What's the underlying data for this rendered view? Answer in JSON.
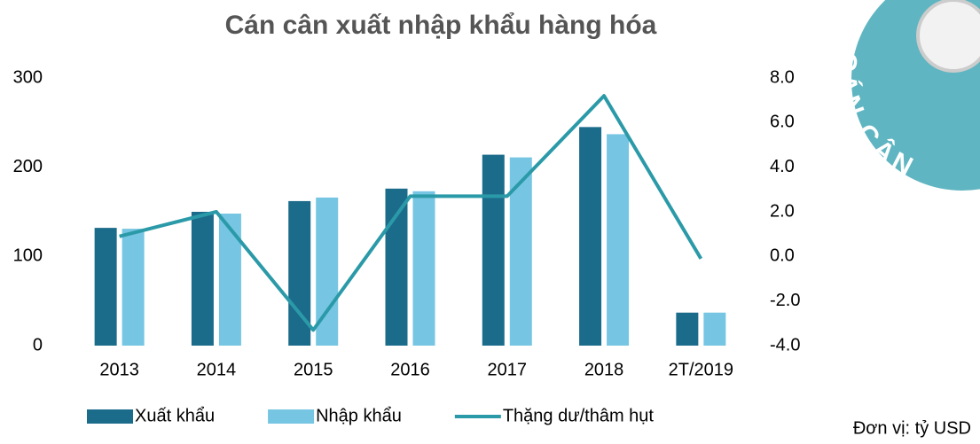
{
  "chart_data": {
    "type": "bar-line",
    "title": "Cán cân xuất nhập khẩu hàng hóa",
    "categories": [
      "2013",
      "2014",
      "2015",
      "2016",
      "2017",
      "2018",
      "2T/2019"
    ],
    "series": [
      {
        "name": "Xuất khẩu",
        "color": "#1b6b8b",
        "type": "bar",
        "values": [
          132,
          150,
          162,
          176,
          214,
          245,
          37
        ]
      },
      {
        "name": "Nhập khẩu",
        "color": "#76c5e3",
        "type": "bar",
        "values": [
          131,
          148,
          166,
          173,
          211,
          237,
          37
        ]
      },
      {
        "name": "Thặng dư/thâm hụt",
        "color": "#2b9aa8",
        "type": "line",
        "axis": "y2",
        "values": [
          0.9,
          2.0,
          -3.3,
          2.7,
          2.7,
          7.2,
          -0.1
        ]
      }
    ],
    "ylim": [
      0,
      300
    ],
    "yticks": [
      0,
      100,
      200,
      300
    ],
    "y2lim": [
      -4,
      8
    ],
    "y2ticks": [
      {
        "value": -4,
        "label": "-4.0"
      },
      {
        "value": -2,
        "label": "-2.0"
      },
      {
        "value": 0,
        "label": "0.0"
      },
      {
        "value": 2,
        "label": "2.0"
      },
      {
        "value": 4,
        "label": "4.0"
      },
      {
        "value": 6,
        "label": "6.0"
      },
      {
        "value": 8,
        "label": "8.0"
      }
    ],
    "grid": false,
    "legend": "bottom",
    "unit_note": "Đơn vị: tỷ USD"
  },
  "badge": "CÁN CÂN"
}
